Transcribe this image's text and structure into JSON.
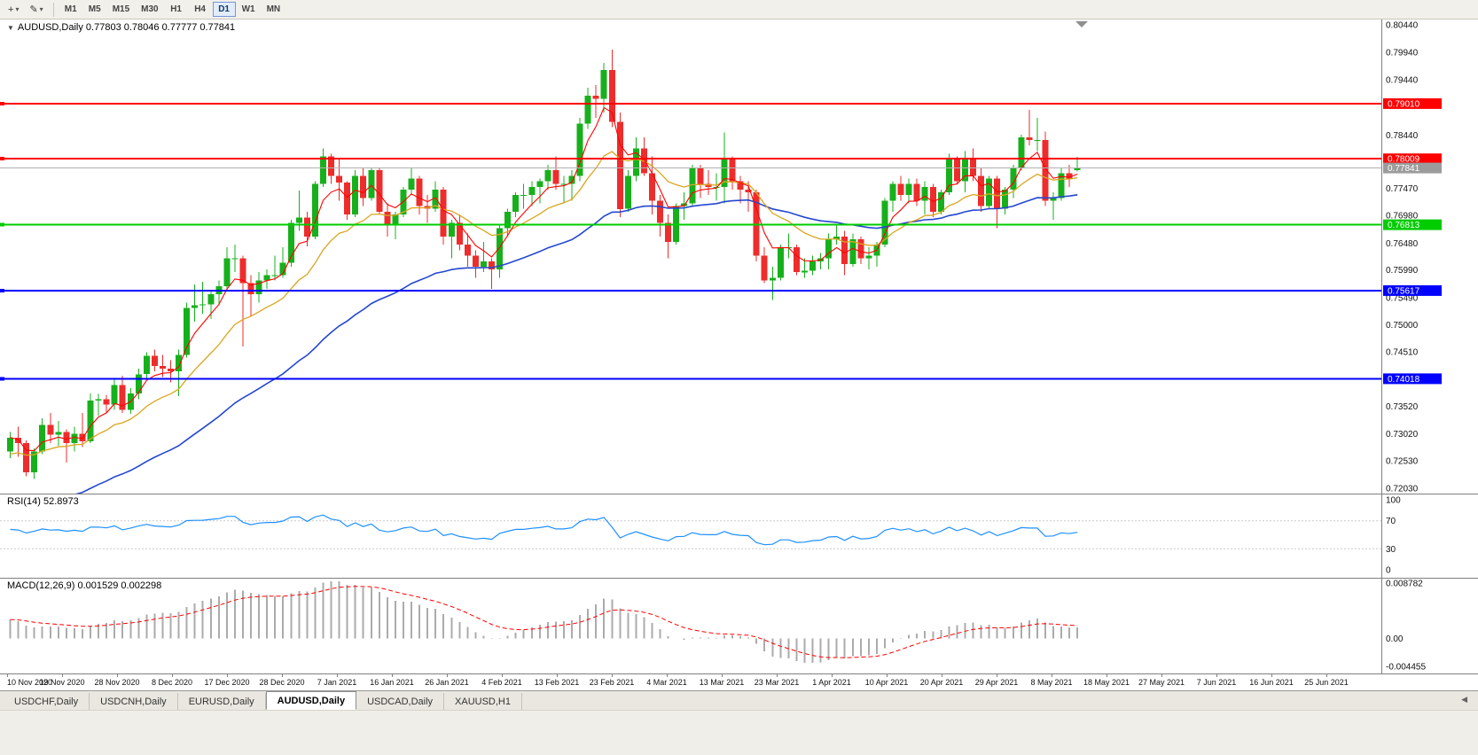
{
  "toolbar": {
    "tools": [
      {
        "name": "crosshair-tool",
        "glyph": "+",
        "caret": "▾"
      },
      {
        "name": "drawing-tool",
        "glyph": "✎",
        "caret": "▾"
      }
    ],
    "timeframes": [
      {
        "label": "M1",
        "active": false
      },
      {
        "label": "M5",
        "active": false
      },
      {
        "label": "M15",
        "active": false
      },
      {
        "label": "M30",
        "active": false
      },
      {
        "label": "H1",
        "active": false
      },
      {
        "label": "H4",
        "active": false
      },
      {
        "label": "D1",
        "active": true
      },
      {
        "label": "W1",
        "active": false
      },
      {
        "label": "MN",
        "active": false
      }
    ]
  },
  "main_chart": {
    "collapse_glyph": "▼",
    "title": "AUDUSD,Daily 0.77803 0.78046 0.77777 0.77841",
    "price_min": 0.7203,
    "price_max": 0.8044,
    "scale_labels": [
      "0.80440",
      "0.79940",
      "0.79440",
      "0.78940",
      "0.78440",
      "0.77970",
      "0.77470",
      "0.76980",
      "0.76480",
      "0.75990",
      "0.75490",
      "0.75000",
      "0.74510",
      "0.74010",
      "0.73520",
      "0.73020",
      "0.72530",
      "0.72030"
    ],
    "hlines": [
      {
        "value": 0.7901,
        "label": "0.79010",
        "color": "#FF0000",
        "role": "resistance"
      },
      {
        "value": 0.78009,
        "label": "0.78009",
        "color": "#FF0000",
        "role": "resistance"
      },
      {
        "value": 0.77841,
        "label": "0.77841",
        "color": "#9c9c9c",
        "role": "bid"
      },
      {
        "value": 0.76813,
        "label": "0.76813",
        "color": "#00CC00",
        "role": "support"
      },
      {
        "value": 0.75617,
        "label": "0.75617",
        "color": "#0000FF",
        "role": "support"
      },
      {
        "value": 0.74018,
        "label": "0.74018",
        "color": "#0000FF",
        "role": "support"
      }
    ],
    "colors": {
      "up": "#17B01C",
      "down": "#EE2C2C",
      "ma_fast": "#FF0000",
      "ma_mid": "#DAA520",
      "ma_slow": "#2447D0",
      "bid_line": "#B0B0B0"
    }
  },
  "rsi_panel": {
    "label": "RSI(14) 52.8973",
    "axis_labels": [
      "100",
      "70",
      "30",
      "0"
    ],
    "upper_level": 70,
    "lower_level": 30,
    "line_color": "#1E90FF"
  },
  "macd_panel": {
    "label": "MACD(12,26,9) 0.001529 0.002298",
    "axis_max": "0.008782",
    "axis_zero": "0.00",
    "axis_min": "-0.004455",
    "hist_color": "#ABABAB",
    "signal_color": "#FF0000"
  },
  "time_axis": {
    "labels": [
      "10 Nov 2020",
      "19 Nov 2020",
      "28 Nov 2020",
      "8 Dec 2020",
      "17 Dec 2020",
      "28 Dec 2020",
      "7 Jan 2021",
      "16 Jan 2021",
      "26 Jan 2021",
      "4 Feb 2021",
      "13 Feb 2021",
      "23 Feb 2021",
      "4 Mar 2021",
      "13 Mar 2021",
      "23 Mar 2021",
      "1 Apr 2021",
      "10 Apr 2021",
      "20 Apr 2021",
      "29 Apr 2021",
      "8 May 2021",
      "18 May 2021",
      "27 May 2021",
      "7 Jun 2021",
      "16 Jun 2021",
      "25 Jun 2021"
    ]
  },
  "tabs": {
    "items": [
      {
        "label": "USDCHF,Daily",
        "active": false
      },
      {
        "label": "USDCNH,Daily",
        "active": false
      },
      {
        "label": "EURUSD,Daily",
        "active": false
      },
      {
        "label": "AUDUSD,Daily",
        "active": true
      },
      {
        "label": "USDCAD,Daily",
        "active": false
      },
      {
        "label": "XAUUSD,H1",
        "active": false
      }
    ],
    "scroll_left_glyph": "◀"
  },
  "chart_data": {
    "type": "candlestick",
    "symbol": "AUDUSD",
    "timeframe": "Daily",
    "current_ohlc": {
      "open": 0.77803,
      "high": 0.78046,
      "low": 0.77777,
      "close": 0.77841
    },
    "visible_price_range": [
      0.7203,
      0.8044
    ],
    "horizontal_levels": [
      0.7901,
      0.78009,
      0.77841,
      0.76813,
      0.75617,
      0.74018
    ],
    "indicators": {
      "rsi_period": 14,
      "rsi_current": 52.8973,
      "macd_params": [
        12,
        26,
        9
      ],
      "macd_current": 0.001529,
      "macd_signal_current": 0.002298,
      "ma_periods": [
        5,
        15,
        45
      ]
    },
    "candles": [
      [
        0.727,
        0.7305,
        0.7258,
        0.7295
      ],
      [
        0.7295,
        0.7315,
        0.726,
        0.7285
      ],
      [
        0.7285,
        0.729,
        0.7225,
        0.7232
      ],
      [
        0.7232,
        0.7275,
        0.722,
        0.727
      ],
      [
        0.727,
        0.733,
        0.7265,
        0.7318
      ],
      [
        0.7318,
        0.734,
        0.7285,
        0.73
      ],
      [
        0.73,
        0.7325,
        0.728,
        0.7305
      ],
      [
        0.7305,
        0.731,
        0.725,
        0.7285
      ],
      [
        0.7285,
        0.7315,
        0.727,
        0.7302
      ],
      [
        0.7302,
        0.734,
        0.7278,
        0.7288
      ],
      [
        0.7288,
        0.7375,
        0.7285,
        0.7362
      ],
      [
        0.7362,
        0.7374,
        0.7335,
        0.7365
      ],
      [
        0.7365,
        0.7372,
        0.734,
        0.7355
      ],
      [
        0.7355,
        0.74,
        0.7345,
        0.739
      ],
      [
        0.739,
        0.7407,
        0.734,
        0.7345
      ],
      [
        0.7345,
        0.7385,
        0.7338,
        0.7375
      ],
      [
        0.7375,
        0.742,
        0.7365,
        0.741
      ],
      [
        0.741,
        0.745,
        0.74,
        0.7443
      ],
      [
        0.7443,
        0.7455,
        0.7415,
        0.7425
      ],
      [
        0.7425,
        0.7445,
        0.7405,
        0.742
      ],
      [
        0.742,
        0.7435,
        0.7395,
        0.7415
      ],
      [
        0.7415,
        0.7455,
        0.737,
        0.7445
      ],
      [
        0.7445,
        0.754,
        0.744,
        0.753
      ],
      [
        0.753,
        0.7573,
        0.7505,
        0.7535
      ],
      [
        0.7535,
        0.7578,
        0.752,
        0.7537
      ],
      [
        0.7537,
        0.756,
        0.751,
        0.7555
      ],
      [
        0.7555,
        0.758,
        0.7535,
        0.757
      ],
      [
        0.757,
        0.764,
        0.7565,
        0.762
      ],
      [
        0.762,
        0.7645,
        0.7595,
        0.762
      ],
      [
        0.762,
        0.7625,
        0.746,
        0.7575
      ],
      [
        0.7575,
        0.759,
        0.7515,
        0.7555
      ],
      [
        0.7555,
        0.7595,
        0.754,
        0.758
      ],
      [
        0.758,
        0.76,
        0.7565,
        0.759
      ],
      [
        0.759,
        0.7625,
        0.758,
        0.759
      ],
      [
        0.759,
        0.764,
        0.7585,
        0.7612
      ],
      [
        0.7612,
        0.769,
        0.7605,
        0.7685
      ],
      [
        0.7685,
        0.7743,
        0.767,
        0.7694
      ],
      [
        0.7694,
        0.7705,
        0.7642,
        0.766
      ],
      [
        0.766,
        0.776,
        0.7655,
        0.7755
      ],
      [
        0.7755,
        0.782,
        0.775,
        0.7805
      ],
      [
        0.7805,
        0.781,
        0.7755,
        0.777
      ],
      [
        0.777,
        0.78,
        0.7725,
        0.7758
      ],
      [
        0.7758,
        0.776,
        0.769,
        0.77
      ],
      [
        0.77,
        0.778,
        0.7695,
        0.777
      ],
      [
        0.777,
        0.7785,
        0.7715,
        0.773
      ],
      [
        0.773,
        0.7785,
        0.7725,
        0.778
      ],
      [
        0.778,
        0.7785,
        0.77,
        0.7705
      ],
      [
        0.7705,
        0.772,
        0.766,
        0.768
      ],
      [
        0.768,
        0.7705,
        0.7655,
        0.77
      ],
      [
        0.77,
        0.775,
        0.7695,
        0.7745
      ],
      [
        0.7745,
        0.7785,
        0.7735,
        0.7765
      ],
      [
        0.7765,
        0.777,
        0.77,
        0.7715
      ],
      [
        0.7715,
        0.7735,
        0.7685,
        0.771
      ],
      [
        0.771,
        0.776,
        0.7705,
        0.7745
      ],
      [
        0.7745,
        0.775,
        0.7645,
        0.766
      ],
      [
        0.766,
        0.769,
        0.762,
        0.7685
      ],
      [
        0.7685,
        0.77,
        0.7635,
        0.7645
      ],
      [
        0.7645,
        0.7665,
        0.7605,
        0.7625
      ],
      [
        0.7625,
        0.7635,
        0.7585,
        0.7605
      ],
      [
        0.7605,
        0.765,
        0.7595,
        0.7615
      ],
      [
        0.7615,
        0.762,
        0.7565,
        0.76
      ],
      [
        0.76,
        0.768,
        0.7585,
        0.7675
      ],
      [
        0.7675,
        0.771,
        0.766,
        0.7705
      ],
      [
        0.7705,
        0.774,
        0.7695,
        0.7735
      ],
      [
        0.7735,
        0.7755,
        0.771,
        0.7735
      ],
      [
        0.7735,
        0.776,
        0.7715,
        0.775
      ],
      [
        0.775,
        0.7765,
        0.772,
        0.776
      ],
      [
        0.776,
        0.779,
        0.7745,
        0.778
      ],
      [
        0.778,
        0.7805,
        0.7745,
        0.7755
      ],
      [
        0.7755,
        0.777,
        0.772,
        0.7755
      ],
      [
        0.7755,
        0.778,
        0.7725,
        0.777
      ],
      [
        0.777,
        0.7875,
        0.776,
        0.7865
      ],
      [
        0.7865,
        0.793,
        0.7855,
        0.7915
      ],
      [
        0.7915,
        0.7935,
        0.7875,
        0.791
      ],
      [
        0.791,
        0.7975,
        0.7885,
        0.7962
      ],
      [
        0.7962,
        0.7999,
        0.7858,
        0.7868
      ],
      [
        0.7868,
        0.7885,
        0.7695,
        0.771
      ],
      [
        0.771,
        0.778,
        0.7705,
        0.777
      ],
      [
        0.777,
        0.784,
        0.776,
        0.782
      ],
      [
        0.782,
        0.784,
        0.777,
        0.7775
      ],
      [
        0.7775,
        0.7805,
        0.77,
        0.7725
      ],
      [
        0.7725,
        0.7735,
        0.766,
        0.7685
      ],
      [
        0.7685,
        0.77,
        0.762,
        0.765
      ],
      [
        0.765,
        0.772,
        0.7645,
        0.7715
      ],
      [
        0.7715,
        0.774,
        0.769,
        0.772
      ],
      [
        0.772,
        0.779,
        0.7715,
        0.7785
      ],
      [
        0.7785,
        0.779,
        0.773,
        0.7755
      ],
      [
        0.7755,
        0.778,
        0.7735,
        0.775
      ],
      [
        0.775,
        0.7775,
        0.7725,
        0.775
      ],
      [
        0.775,
        0.7849,
        0.772,
        0.78
      ],
      [
        0.78,
        0.7805,
        0.7745,
        0.776
      ],
      [
        0.776,
        0.777,
        0.772,
        0.7745
      ],
      [
        0.7745,
        0.776,
        0.7705,
        0.774
      ],
      [
        0.774,
        0.7745,
        0.7615,
        0.7625
      ],
      [
        0.7625,
        0.764,
        0.7575,
        0.758
      ],
      [
        0.758,
        0.7605,
        0.7545,
        0.7585
      ],
      [
        0.7585,
        0.7645,
        0.758,
        0.764
      ],
      [
        0.764,
        0.7665,
        0.762,
        0.764
      ],
      [
        0.764,
        0.7645,
        0.759,
        0.7595
      ],
      [
        0.7595,
        0.762,
        0.7585,
        0.7598
      ],
      [
        0.7598,
        0.7625,
        0.759,
        0.7615
      ],
      [
        0.7615,
        0.763,
        0.76,
        0.762
      ],
      [
        0.762,
        0.7665,
        0.76,
        0.7655
      ],
      [
        0.7655,
        0.768,
        0.7645,
        0.766
      ],
      [
        0.766,
        0.767,
        0.759,
        0.761
      ],
      [
        0.761,
        0.7665,
        0.7605,
        0.7655
      ],
      [
        0.7655,
        0.766,
        0.761,
        0.762
      ],
      [
        0.762,
        0.764,
        0.76,
        0.7625
      ],
      [
        0.7625,
        0.765,
        0.7605,
        0.7645
      ],
      [
        0.7645,
        0.773,
        0.764,
        0.7725
      ],
      [
        0.7725,
        0.776,
        0.7705,
        0.7755
      ],
      [
        0.7755,
        0.777,
        0.7725,
        0.7735
      ],
      [
        0.7735,
        0.7765,
        0.772,
        0.7755
      ],
      [
        0.7755,
        0.7765,
        0.7715,
        0.7725
      ],
      [
        0.7725,
        0.776,
        0.77,
        0.775
      ],
      [
        0.775,
        0.7755,
        0.7695,
        0.7705
      ],
      [
        0.7705,
        0.7745,
        0.77,
        0.774
      ],
      [
        0.774,
        0.781,
        0.7735,
        0.78
      ],
      [
        0.78,
        0.7805,
        0.7755,
        0.776
      ],
      [
        0.776,
        0.7815,
        0.774,
        0.78
      ],
      [
        0.78,
        0.782,
        0.776,
        0.777
      ],
      [
        0.777,
        0.7785,
        0.7705,
        0.7715
      ],
      [
        0.7715,
        0.777,
        0.771,
        0.7765
      ],
      [
        0.7765,
        0.777,
        0.7675,
        0.771
      ],
      [
        0.771,
        0.775,
        0.77,
        0.7745
      ],
      [
        0.7745,
        0.779,
        0.773,
        0.7785
      ],
      [
        0.7785,
        0.7845,
        0.778,
        0.784
      ],
      [
        0.784,
        0.789,
        0.7825,
        0.7835
      ],
      [
        0.7835,
        0.7875,
        0.7815,
        0.7835
      ],
      [
        0.7835,
        0.785,
        0.7715,
        0.7725
      ],
      [
        0.7725,
        0.774,
        0.769,
        0.773
      ],
      [
        0.773,
        0.7785,
        0.7725,
        0.7775
      ],
      [
        0.7775,
        0.779,
        0.775,
        0.7765
      ],
      [
        0.77803,
        0.78046,
        0.77777,
        0.77841
      ]
    ]
  }
}
